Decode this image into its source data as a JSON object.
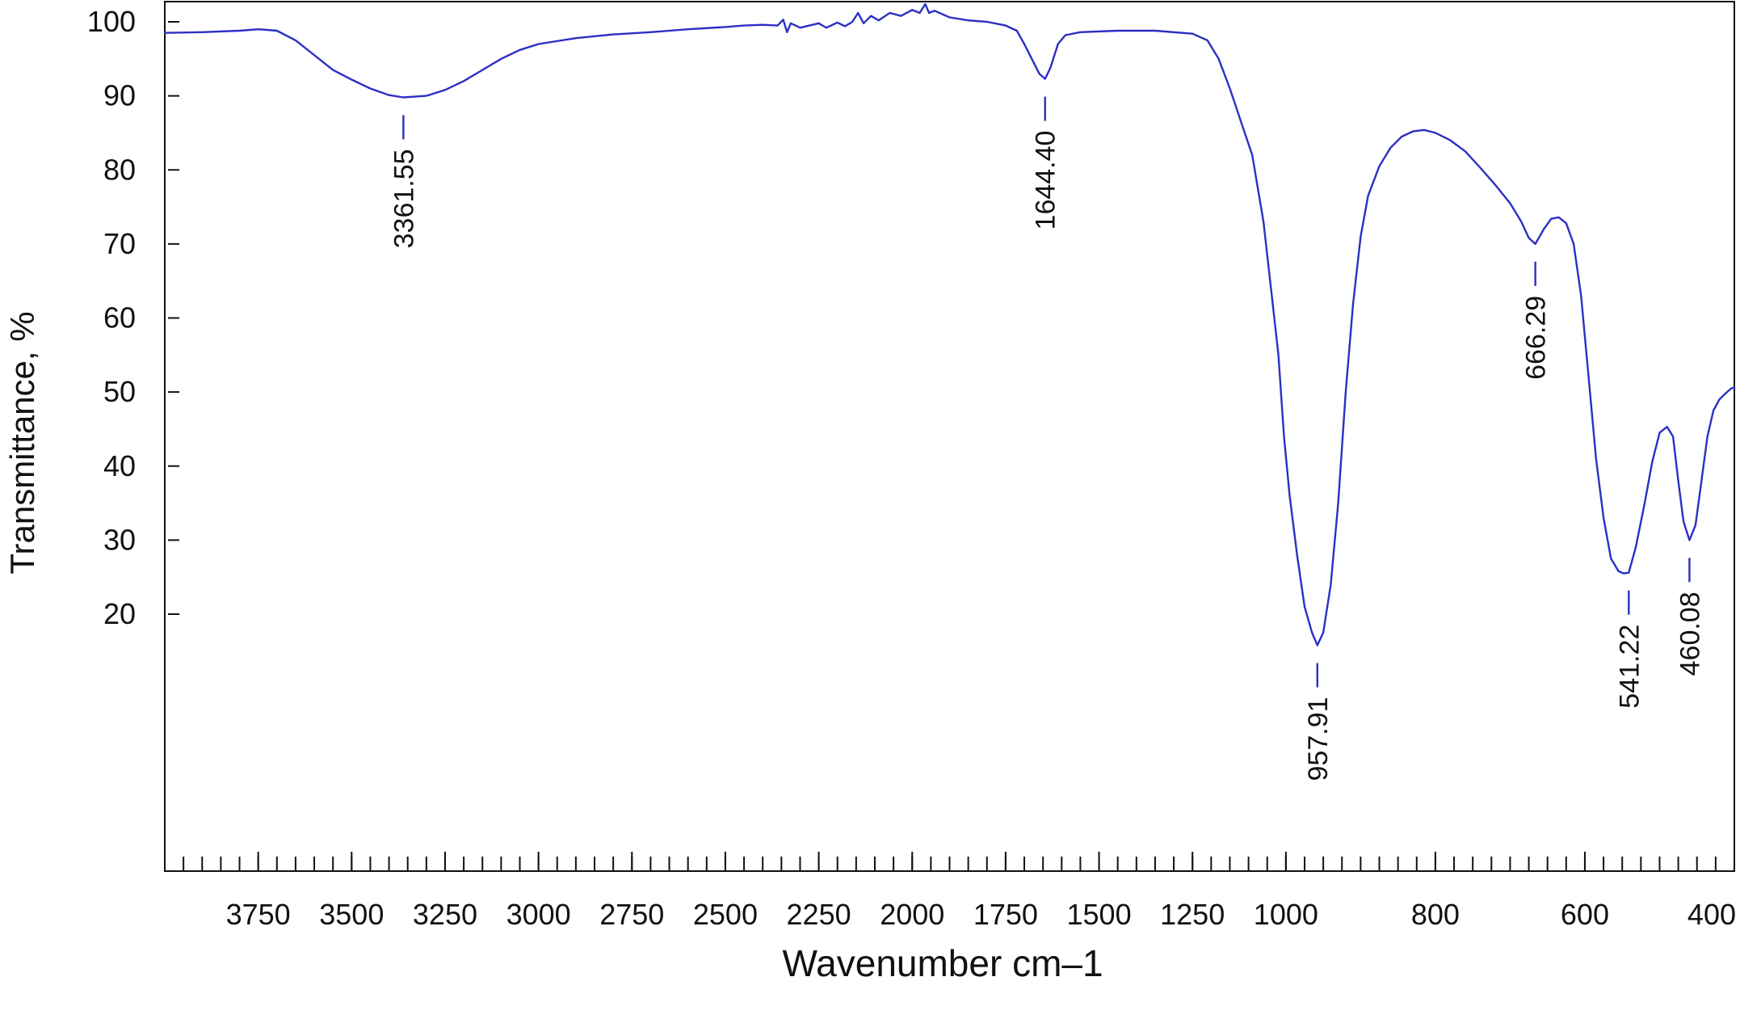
{
  "chart_data": {
    "type": "line",
    "title": "",
    "xlabel": "Wavenumber cm–1",
    "ylabel": "Transmittance, %",
    "x_scale": "piecewise-linear (1 unit per cm–1 above 1000, 2 units per cm–1 below 1000)",
    "x_ticks": [
      {
        "value": 3750,
        "label": "3750"
      },
      {
        "value": 3500,
        "label": "3500"
      },
      {
        "value": 3250,
        "label": "3250"
      },
      {
        "value": 3000,
        "label": "3000"
      },
      {
        "value": 2750,
        "label": "2750"
      },
      {
        "value": 2500,
        "label": "2500"
      },
      {
        "value": 2250,
        "label": "2250"
      },
      {
        "value": 2000,
        "label": "2000"
      },
      {
        "value": 1750,
        "label": "1750"
      },
      {
        "value": 1500,
        "label": "1500"
      },
      {
        "value": 1250,
        "label": "1250"
      },
      {
        "value": 1000,
        "label": "1000"
      },
      {
        "value": 800,
        "label": "800"
      },
      {
        "value": 600,
        "label": "600"
      },
      {
        "value": 400,
        "label": "400"
      }
    ],
    "y_ticks": [
      {
        "value": 100,
        "label": "100"
      },
      {
        "value": 90,
        "label": "90"
      },
      {
        "value": 80,
        "label": "80"
      },
      {
        "value": 70,
        "label": "70"
      },
      {
        "value": 60,
        "label": "60"
      },
      {
        "value": 50,
        "label": "50"
      },
      {
        "value": 40,
        "label": "40"
      },
      {
        "value": 30,
        "label": "30"
      },
      {
        "value": 20,
        "label": "20"
      }
    ],
    "xlim": [
      4000,
      400
    ],
    "ylim": [
      -15,
      103
    ],
    "grid": false,
    "line_color": "#2b2fc4",
    "series": [
      {
        "points": [
          [
            4000,
            98.5
          ],
          [
            3900,
            98.6
          ],
          [
            3800,
            98.8
          ],
          [
            3750,
            99.0
          ],
          [
            3700,
            98.8
          ],
          [
            3650,
            97.5
          ],
          [
            3600,
            95.5
          ],
          [
            3550,
            93.5
          ],
          [
            3500,
            92.2
          ],
          [
            3450,
            91.0
          ],
          [
            3400,
            90.1
          ],
          [
            3361.55,
            89.8
          ],
          [
            3300,
            90.0
          ],
          [
            3250,
            90.8
          ],
          [
            3200,
            92.0
          ],
          [
            3150,
            93.5
          ],
          [
            3100,
            95.0
          ],
          [
            3050,
            96.2
          ],
          [
            3000,
            97.0
          ],
          [
            2900,
            97.8
          ],
          [
            2800,
            98.3
          ],
          [
            2700,
            98.6
          ],
          [
            2600,
            99.0
          ],
          [
            2500,
            99.3
          ],
          [
            2450,
            99.5
          ],
          [
            2400,
            99.6
          ],
          [
            2360,
            99.5
          ],
          [
            2345,
            100.3
          ],
          [
            2335,
            98.6
          ],
          [
            2325,
            99.8
          ],
          [
            2300,
            99.2
          ],
          [
            2250,
            99.8
          ],
          [
            2230,
            99.2
          ],
          [
            2200,
            99.9
          ],
          [
            2180,
            99.4
          ],
          [
            2160,
            100.0
          ],
          [
            2145,
            101.2
          ],
          [
            2130,
            99.8
          ],
          [
            2110,
            100.8
          ],
          [
            2090,
            100.2
          ],
          [
            2060,
            101.2
          ],
          [
            2030,
            100.8
          ],
          [
            2000,
            101.6
          ],
          [
            1980,
            101.2
          ],
          [
            1965,
            102.4
          ],
          [
            1955,
            101.2
          ],
          [
            1940,
            101.5
          ],
          [
            1900,
            100.6
          ],
          [
            1850,
            100.2
          ],
          [
            1800,
            100.0
          ],
          [
            1750,
            99.5
          ],
          [
            1720,
            98.8
          ],
          [
            1700,
            97.0
          ],
          [
            1680,
            95.0
          ],
          [
            1660,
            93.0
          ],
          [
            1644.4,
            92.3
          ],
          [
            1630,
            93.8
          ],
          [
            1610,
            97.0
          ],
          [
            1590,
            98.2
          ],
          [
            1550,
            98.6
          ],
          [
            1450,
            98.8
          ],
          [
            1350,
            98.8
          ],
          [
            1250,
            98.4
          ],
          [
            1210,
            97.5
          ],
          [
            1180,
            95.0
          ],
          [
            1150,
            91.0
          ],
          [
            1120,
            86.5
          ],
          [
            1090,
            82.0
          ],
          [
            1060,
            73.0
          ],
          [
            1040,
            64.0
          ],
          [
            1020,
            55.0
          ],
          [
            1005,
            44.0
          ],
          [
            995,
            36.0
          ],
          [
            985,
            28.0
          ],
          [
            975,
            21.0
          ],
          [
            965,
            17.5
          ],
          [
            957.91,
            15.8
          ],
          [
            950,
            17.5
          ],
          [
            940,
            24.0
          ],
          [
            930,
            35.0
          ],
          [
            920,
            50.0
          ],
          [
            910,
            62.0
          ],
          [
            900,
            71.0
          ],
          [
            890,
            76.5
          ],
          [
            875,
            80.5
          ],
          [
            860,
            83.0
          ],
          [
            845,
            84.5
          ],
          [
            830,
            85.2
          ],
          [
            815,
            85.4
          ],
          [
            800,
            85.0
          ],
          [
            780,
            84.0
          ],
          [
            760,
            82.5
          ],
          [
            740,
            80.3
          ],
          [
            720,
            78.0
          ],
          [
            700,
            75.5
          ],
          [
            685,
            73.0
          ],
          [
            675,
            70.8
          ],
          [
            666.29,
            70.0
          ],
          [
            655,
            72.0
          ],
          [
            645,
            73.4
          ],
          [
            635,
            73.6
          ],
          [
            625,
            72.8
          ],
          [
            615,
            70.0
          ],
          [
            605,
            63.0
          ],
          [
            595,
            52.0
          ],
          [
            585,
            41.0
          ],
          [
            575,
            33.0
          ],
          [
            565,
            27.5
          ],
          [
            555,
            25.8
          ],
          [
            548,
            25.5
          ],
          [
            541.22,
            25.6
          ],
          [
            532,
            29.0
          ],
          [
            520,
            35.0
          ],
          [
            510,
            40.5
          ],
          [
            500,
            44.5
          ],
          [
            490,
            45.3
          ],
          [
            482,
            44.0
          ],
          [
            475,
            38.0
          ],
          [
            468,
            32.5
          ],
          [
            460.08,
            30.0
          ],
          [
            452,
            32.0
          ],
          [
            444,
            38.0
          ],
          [
            436,
            44.0
          ],
          [
            428,
            47.5
          ],
          [
            420,
            49.0
          ],
          [
            412,
            49.8
          ],
          [
            404,
            50.5
          ],
          [
            400,
            50.6
          ]
        ]
      }
    ],
    "annotations": [
      {
        "x": 3361.55,
        "y": 89.8,
        "label": "3361.55"
      },
      {
        "x": 1644.4,
        "y": 92.3,
        "label": "1644.40"
      },
      {
        "x": 957.91,
        "y": 15.8,
        "label": "957.91"
      },
      {
        "x": 666.29,
        "y": 70.0,
        "label": "666.29"
      },
      {
        "x": 541.22,
        "y": 25.6,
        "label": "541.22"
      },
      {
        "x": 460.08,
        "y": 30.0,
        "label": "460.08"
      }
    ]
  }
}
